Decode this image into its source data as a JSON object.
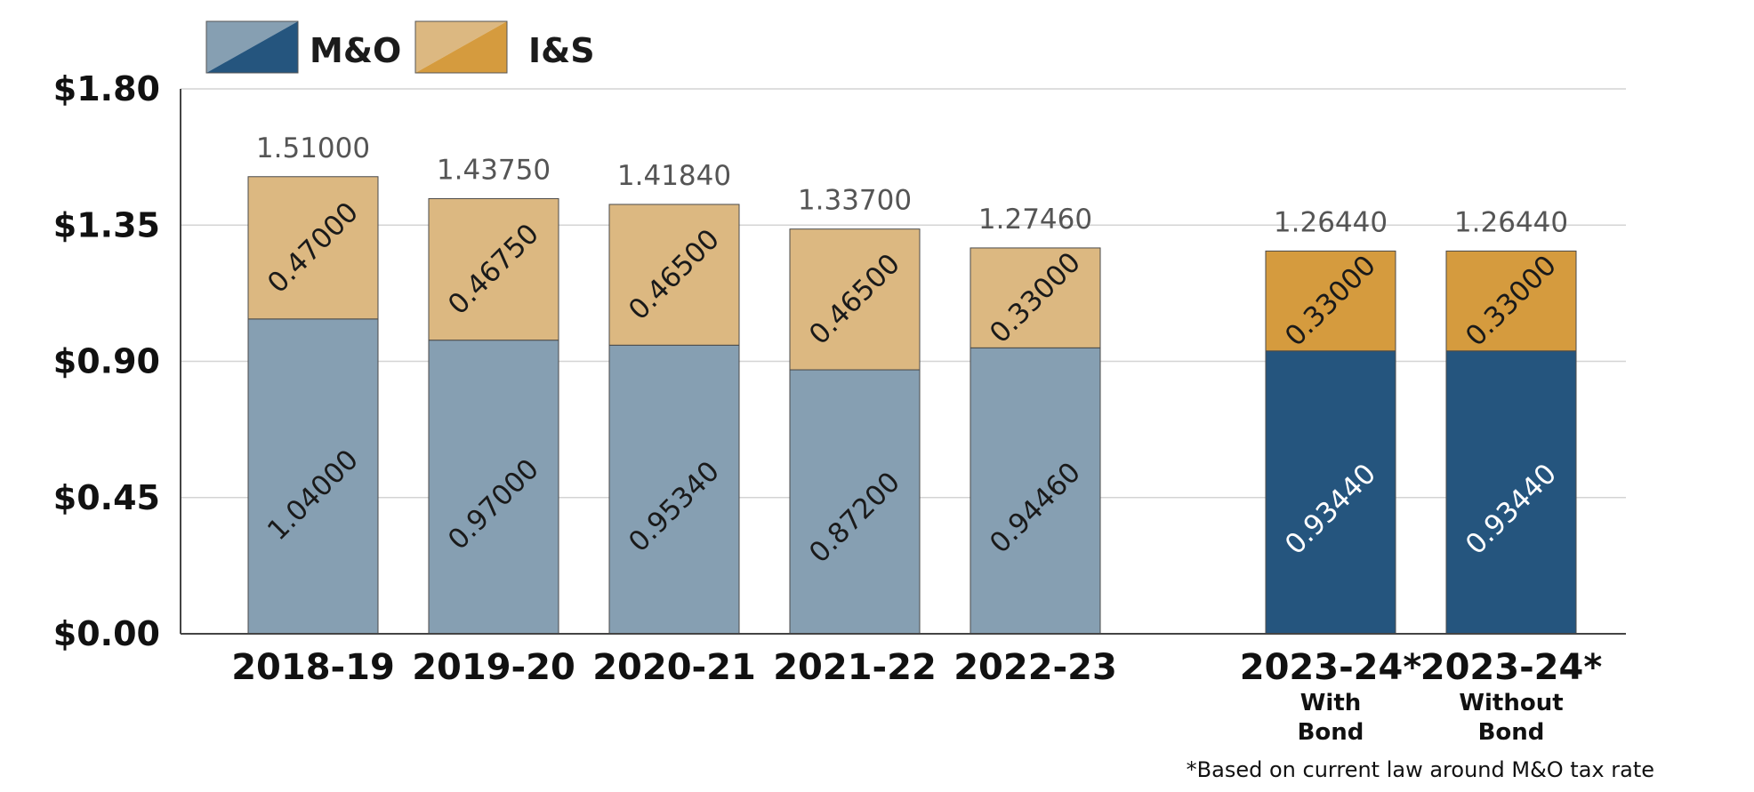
{
  "chart_data": {
    "type": "bar",
    "stacked": true,
    "title": "",
    "xlabel": "",
    "ylabel": "",
    "ylim": [
      0,
      1.8
    ],
    "y_ticks": [
      "$0.00",
      "$0.45",
      "$0.90",
      "$1.35",
      "$1.80"
    ],
    "grid": true,
    "legend_position": "top-left",
    "categories": [
      {
        "label": "2018-19",
        "sub": []
      },
      {
        "label": "2019-20",
        "sub": []
      },
      {
        "label": "2020-21",
        "sub": []
      },
      {
        "label": "2021-22",
        "sub": []
      },
      {
        "label": "2022-23",
        "sub": []
      },
      {
        "label": "2023-24*",
        "sub": [
          "With",
          "Bond"
        ]
      },
      {
        "label": "2023-24*",
        "sub": [
          "Without",
          "Bond"
        ]
      }
    ],
    "series": [
      {
        "name": "M&O",
        "values": [
          1.04,
          0.97,
          0.9534,
          0.872,
          0.9446,
          0.9344,
          0.9344
        ],
        "labels": [
          "1.04000",
          "0.97000",
          "0.95340",
          "0.87200",
          "0.94460",
          "0.93440",
          "0.93440"
        ]
      },
      {
        "name": "I&S",
        "values": [
          0.47,
          0.4675,
          0.465,
          0.465,
          0.33,
          0.33,
          0.33
        ],
        "labels": [
          "0.47000",
          "0.46750",
          "0.46500",
          "0.46500",
          "0.33000",
          "0.33000",
          "0.33000"
        ]
      }
    ],
    "totals": [
      1.51,
      1.4375,
      1.4184,
      1.337,
      1.2746,
      1.2644,
      1.2644
    ],
    "total_labels": [
      "1.51000",
      "1.43750",
      "1.41840",
      "1.33700",
      "1.27460",
      "1.26440",
      "1.26440"
    ],
    "highlighted_categories": [
      5,
      6
    ],
    "colors": {
      "mo_light": "#869fb2",
      "is_light": "#dcb881",
      "mo_dark": "#25557e",
      "is_dark": "#d59b3e",
      "grid": "#d4d4d4",
      "axis": "#444444",
      "total_text": "#555555"
    },
    "footnote": "*Based on current law around M&O tax rate"
  }
}
